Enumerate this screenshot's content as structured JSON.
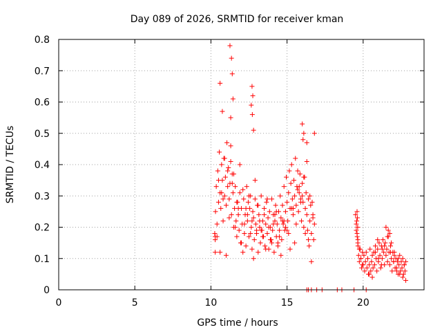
{
  "chart_data": {
    "type": "scatter",
    "title": "Day 089 of 2026, SRMTID for receiver kman",
    "xlabel": "GPS time / hours",
    "ylabel": "SRMTID / TECUs",
    "xlim": [
      0,
      24
    ],
    "ylim": [
      0,
      0.8
    ],
    "xticks": [
      0,
      5,
      10,
      15,
      20
    ],
    "yticks": [
      0,
      0.1,
      0.2,
      0.3,
      0.4,
      0.5,
      0.6,
      0.7,
      0.8
    ],
    "xtick_labels": [
      "0",
      "5",
      "10",
      "15",
      "20"
    ],
    "ytick_labels": [
      "0",
      "0.1",
      "0.2",
      "0.3",
      "0.4",
      "0.5",
      "0.6",
      "0.7",
      "0.8"
    ],
    "grid": true,
    "marker": "+",
    "color": "#ff0000",
    "series": [
      {
        "name": "SRMTID",
        "x": [
          10.25,
          10.3,
          10.35,
          10.4,
          10.45,
          10.5,
          10.55,
          10.6,
          10.65,
          10.7,
          10.75,
          10.8,
          10.85,
          10.9,
          10.95,
          11.0,
          11.05,
          11.1,
          11.15,
          11.2,
          11.25,
          11.3,
          11.35,
          11.4,
          11.45,
          11.5,
          11.55,
          11.6,
          11.65,
          11.7,
          11.75,
          11.8,
          11.85,
          11.9,
          11.95,
          12.0,
          12.05,
          12.1,
          12.15,
          12.2,
          12.25,
          12.3,
          12.35,
          12.4,
          12.45,
          12.5,
          12.55,
          12.6,
          12.65,
          12.7,
          12.75,
          12.8,
          12.85,
          12.9,
          12.95,
          13.0,
          13.05,
          13.1,
          13.15,
          13.2,
          13.25,
          13.3,
          13.35,
          13.4,
          13.45,
          13.5,
          13.55,
          13.6,
          13.65,
          13.7,
          13.75,
          13.8,
          13.85,
          13.9,
          13.95,
          14.0,
          14.05,
          14.1,
          14.15,
          14.2,
          14.25,
          14.3,
          14.35,
          14.4,
          14.45,
          14.5,
          14.55,
          14.6,
          14.65,
          14.7,
          14.75,
          14.8,
          14.85,
          14.9,
          14.95,
          15.0,
          15.05,
          15.1,
          15.15,
          15.2,
          15.25,
          15.3,
          15.35,
          15.4,
          15.45,
          15.5,
          15.55,
          15.6,
          15.65,
          15.7,
          15.75,
          15.8,
          15.85,
          15.9,
          15.95,
          16.0,
          16.05,
          16.1,
          16.15,
          16.2,
          16.25,
          16.3,
          16.35,
          16.4,
          16.45,
          16.5,
          16.55,
          16.6,
          16.65,
          16.7,
          16.75,
          16.8,
          10.4,
          10.6,
          10.8,
          11.0,
          11.2,
          11.4,
          11.6,
          11.8,
          12.0,
          12.2,
          12.4,
          12.6,
          12.8,
          13.0,
          13.2,
          13.4,
          13.6,
          13.8,
          14.0,
          14.2,
          14.4,
          14.6,
          14.8,
          15.0,
          15.2,
          15.4,
          15.6,
          15.8,
          16.0,
          16.2,
          16.4,
          16.6,
          10.5,
          10.7,
          10.9,
          11.1,
          11.3,
          11.5,
          11.7,
          11.9,
          12.1,
          12.3,
          12.5,
          12.7,
          12.9,
          13.1,
          13.3,
          13.5,
          13.7,
          13.9,
          14.1,
          14.3,
          14.5,
          14.7,
          14.9,
          15.1,
          15.3,
          15.5,
          15.7,
          15.9,
          16.1,
          16.3,
          16.5,
          16.7,
          10.6,
          11.25,
          11.35,
          11.4,
          11.45,
          11.3,
          10.75,
          12.7,
          12.75,
          12.65,
          12.8,
          12.72,
          16.0,
          16.05,
          16.1,
          16.8,
          16.3,
          10.28,
          10.28,
          10.28,
          16.3,
          16.4,
          16.6,
          16.95,
          17.3,
          18.3,
          18.6,
          19.4,
          20.2,
          19.5,
          19.55,
          19.6,
          19.65,
          19.7,
          19.75,
          19.8,
          19.85,
          19.9,
          19.95,
          20.0,
          20.05,
          20.1,
          20.15,
          20.2,
          20.25,
          20.3,
          20.35,
          20.4,
          20.45,
          20.5,
          20.55,
          20.6,
          20.65,
          20.7,
          20.75,
          20.8,
          20.85,
          20.9,
          20.95,
          21.0,
          21.05,
          21.1,
          21.15,
          21.2,
          21.25,
          21.3,
          21.35,
          21.4,
          21.45,
          21.5,
          21.55,
          21.6,
          21.65,
          21.7,
          21.75,
          21.8,
          21.85,
          21.9,
          21.95,
          22.0,
          22.05,
          22.1,
          22.15,
          22.2,
          22.25,
          22.3,
          22.35,
          22.4,
          22.45,
          22.5,
          22.55,
          22.6,
          22.65,
          22.7,
          22.75,
          22.8,
          19.55,
          19.65,
          19.75,
          19.85,
          19.95,
          20.4,
          20.6,
          20.8,
          21.0,
          21.2,
          21.4,
          21.6,
          21.8,
          22.0,
          22.2,
          22.4,
          22.6,
          22.8,
          19.6,
          19.62,
          19.58,
          19.64,
          19.61,
          19.66,
          21.5,
          21.65,
          21.75,
          21.85,
          20.95,
          21.25,
          22.05,
          22.3,
          22.7
        ],
        "y": [
          0.18,
          0.25,
          0.33,
          0.21,
          0.38,
          0.28,
          0.44,
          0.31,
          0.26,
          0.4,
          0.35,
          0.22,
          0.42,
          0.3,
          0.36,
          0.27,
          0.47,
          0.33,
          0.39,
          0.29,
          0.34,
          0.41,
          0.24,
          0.37,
          0.31,
          0.2,
          0.26,
          0.33,
          0.22,
          0.17,
          0.28,
          0.24,
          0.19,
          0.31,
          0.15,
          0.26,
          0.21,
          0.12,
          0.29,
          0.18,
          0.24,
          0.14,
          0.33,
          0.22,
          0.28,
          0.17,
          0.26,
          0.3,
          0.2,
          0.13,
          0.25,
          0.23,
          0.16,
          0.29,
          0.21,
          0.18,
          0.27,
          0.12,
          0.24,
          0.2,
          0.15,
          0.3,
          0.19,
          0.22,
          0.17,
          0.26,
          0.14,
          0.21,
          0.28,
          0.18,
          0.23,
          0.13,
          0.25,
          0.2,
          0.16,
          0.29,
          0.19,
          0.24,
          0.12,
          0.22,
          0.27,
          0.17,
          0.21,
          0.15,
          0.25,
          0.19,
          0.3,
          0.23,
          0.16,
          0.27,
          0.21,
          0.33,
          0.19,
          0.25,
          0.36,
          0.28,
          0.22,
          0.31,
          0.38,
          0.26,
          0.34,
          0.4,
          0.29,
          0.24,
          0.35,
          0.3,
          0.42,
          0.27,
          0.33,
          0.38,
          0.25,
          0.31,
          0.37,
          0.29,
          0.22,
          0.34,
          0.28,
          0.2,
          0.36,
          0.26,
          0.31,
          0.24,
          0.19,
          0.29,
          0.14,
          0.22,
          0.27,
          0.18,
          0.28,
          0.24,
          0.16,
          0.21,
          0.17,
          0.12,
          0.29,
          0.11,
          0.23,
          0.34,
          0.2,
          0.26,
          0.15,
          0.21,
          0.24,
          0.18,
          0.1,
          0.19,
          0.22,
          0.17,
          0.13,
          0.2,
          0.15,
          0.24,
          0.14,
          0.11,
          0.22,
          0.19,
          0.13,
          0.26,
          0.21,
          0.33,
          0.3,
          0.18,
          0.16,
          0.09,
          0.35,
          0.31,
          0.42,
          0.38,
          0.46,
          0.37,
          0.28,
          0.4,
          0.32,
          0.26,
          0.3,
          0.22,
          0.35,
          0.27,
          0.19,
          0.24,
          0.29,
          0.16,
          0.21,
          0.25,
          0.17,
          0.22,
          0.2,
          0.18,
          0.26,
          0.15,
          0.32,
          0.28,
          0.36,
          0.41,
          0.3,
          0.23,
          0.66,
          0.78,
          0.74,
          0.69,
          0.61,
          0.55,
          0.57,
          0.65,
          0.62,
          0.59,
          0.51,
          0.56,
          0.53,
          0.48,
          0.5,
          0.5,
          0.47,
          0.17,
          0.16,
          0.12,
          0.0,
          0.0,
          0.0,
          0.0,
          0.0,
          0.0,
          0.0,
          0.0,
          0.0,
          0.24,
          0.21,
          0.18,
          0.15,
          0.11,
          0.09,
          0.13,
          0.1,
          0.07,
          0.12,
          0.08,
          0.11,
          0.06,
          0.09,
          0.12,
          0.07,
          0.1,
          0.05,
          0.08,
          0.13,
          0.06,
          0.09,
          0.11,
          0.07,
          0.12,
          0.08,
          0.14,
          0.1,
          0.06,
          0.13,
          0.09,
          0.15,
          0.11,
          0.07,
          0.14,
          0.1,
          0.16,
          0.12,
          0.08,
          0.15,
          0.11,
          0.13,
          0.09,
          0.17,
          0.12,
          0.08,
          0.14,
          0.1,
          0.06,
          0.12,
          0.09,
          0.11,
          0.07,
          0.1,
          0.06,
          0.09,
          0.05,
          0.08,
          0.11,
          0.06,
          0.09,
          0.07,
          0.1,
          0.05,
          0.08,
          0.06,
          0.09,
          0.19,
          0.16,
          0.13,
          0.1,
          0.08,
          0.05,
          0.04,
          0.12,
          0.1,
          0.08,
          0.14,
          0.17,
          0.12,
          0.09,
          0.07,
          0.05,
          0.04,
          0.03,
          0.25,
          0.23,
          0.22,
          0.2,
          0.17,
          0.14,
          0.2,
          0.19,
          0.18,
          0.15,
          0.16,
          0.13,
          0.12,
          0.1,
          0.08
        ]
      }
    ]
  }
}
